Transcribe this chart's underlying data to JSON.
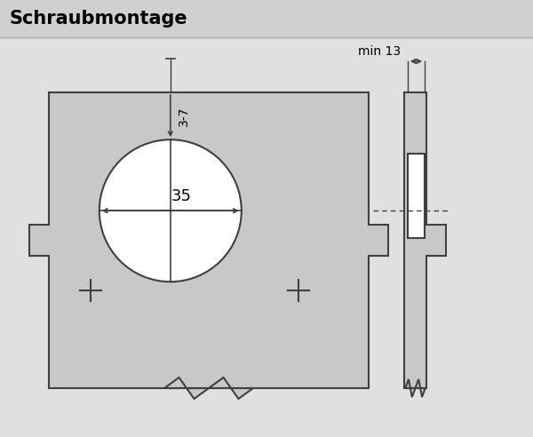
{
  "title_text": "Schraubmontage",
  "bg_color": "#e8e8e8",
  "title_bg_color": "#d0d0d0",
  "drawing_bg": "#e0e0e0",
  "plate_color": "#c8c8c8",
  "plate_edge": "#404040",
  "circle_fill": "#ffffff",
  "white_fill": "#ffffff",
  "dim_color": "#404040",
  "text_color": "#000000",
  "lw_main": 1.5,
  "lw_dim": 1.0,
  "title_fontsize": 15,
  "label_fontsize": 10,
  "num_fontsize": 11,
  "dim_35_fontsize": 13
}
